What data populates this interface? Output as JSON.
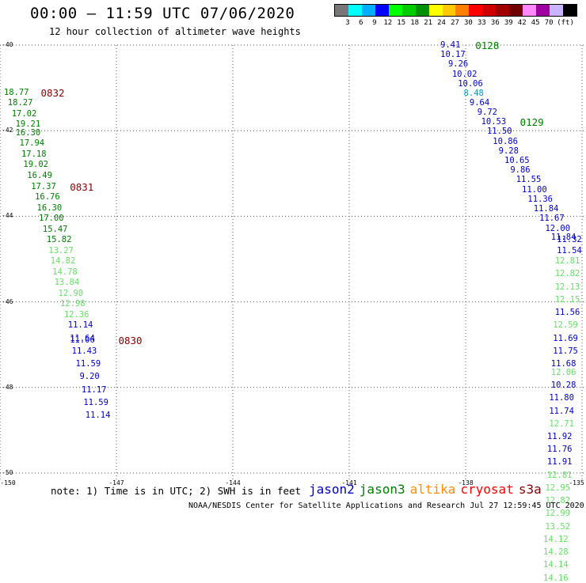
{
  "header": {
    "title": "00:00 – 11:59 UTC 07/06/2020",
    "subtitle": "12 hour collection of altimeter wave heights"
  },
  "legend": {
    "colors": [
      "#777777",
      "#00ffff",
      "#00b0ff",
      "#0000ff",
      "#00ff00",
      "#00cc00",
      "#009000",
      "#ffff00",
      "#ffc800",
      "#ff8000",
      "#ff0000",
      "#d00000",
      "#a00000",
      "#700000",
      "#ff88ff",
      "#a000a0",
      "#c8b4ff",
      "#000000"
    ],
    "ticks": [
      "3",
      "6",
      "9",
      "12",
      "15",
      "18",
      "21",
      "24",
      "27",
      "30",
      "33",
      "36",
      "39",
      "42",
      "45",
      "70",
      "(ft)"
    ]
  },
  "axes": {
    "lat_labels": [
      "-40",
      "-42",
      "-44",
      "-46",
      "-48",
      "-50"
    ],
    "lon_labels": [
      "-150",
      "-147",
      "-144",
      "-141",
      "-138",
      "-135"
    ]
  },
  "satellite_colors": {
    "jason2": "#0000cc",
    "jason3": "#008000",
    "altika": "#ff8c00",
    "cryosat": "#ff0000",
    "s3a": "#8b0000",
    "orbit": "#8b0000"
  },
  "tracks": [
    {
      "name": "track-831-832",
      "points": [
        {
          "lat": -41.1,
          "lon": -149.9,
          "v": "18.77",
          "c": "jason3"
        },
        {
          "lat": -41.35,
          "lon": -149.8,
          "v": "18.27",
          "c": "jason3"
        },
        {
          "lat": -41.6,
          "lon": -149.7,
          "v": "17.02",
          "c": "jason3"
        },
        {
          "lat": -41.85,
          "lon": -149.6,
          "v": "19.21",
          "c": "jason3"
        },
        {
          "lat": -42.05,
          "lon": -149.6,
          "v": "16.30",
          "c": "jason3"
        },
        {
          "lat": -42.3,
          "lon": -149.5,
          "v": "17.94",
          "c": "jason3"
        },
        {
          "lat": -42.55,
          "lon": -149.45,
          "v": "17.18",
          "c": "jason3"
        },
        {
          "lat": -42.8,
          "lon": -149.4,
          "v": "19.02",
          "c": "jason3"
        },
        {
          "lat": -43.05,
          "lon": -149.3,
          "v": "16.49",
          "c": "jason3"
        },
        {
          "lat": -43.3,
          "lon": -149.2,
          "v": "17.37",
          "c": "jason3"
        },
        {
          "lat": -43.55,
          "lon": -149.1,
          "v": "16.76",
          "c": "jason3"
        },
        {
          "lat": -43.8,
          "lon": -149.05,
          "v": "16.30",
          "c": "jason3"
        },
        {
          "lat": -44.05,
          "lon": -149.0,
          "v": "17.00",
          "c": "jason3"
        },
        {
          "lat": -44.3,
          "lon": -148.9,
          "v": "15.47",
          "c": "jason3"
        },
        {
          "lat": -44.55,
          "lon": -148.8,
          "v": "15.82",
          "c": "jason3"
        },
        {
          "lat": -44.8,
          "lon": -148.75,
          "v": "13.27",
          "c": "jason3_light"
        },
        {
          "lat": -45.05,
          "lon": -148.7,
          "v": "14.82",
          "c": "jason3_light"
        },
        {
          "lat": -45.3,
          "lon": -148.65,
          "v": "14.78",
          "c": "jason3_light"
        },
        {
          "lat": -45.55,
          "lon": -148.6,
          "v": "13.84",
          "c": "jason3_light"
        },
        {
          "lat": -45.8,
          "lon": -148.5,
          "v": "12.90",
          "c": "jason3_light"
        },
        {
          "lat": -46.05,
          "lon": -148.45,
          "v": "12.98",
          "c": "jason3_light"
        },
        {
          "lat": -46.3,
          "lon": -148.35,
          "v": "12.36",
          "c": "jason3_light"
        },
        {
          "lat": -46.55,
          "lon": -148.25,
          "v": "11.14",
          "c": "jason2"
        },
        {
          "lat": -46.85,
          "lon": -148.2,
          "v": "11.64",
          "c": "jason2"
        },
        {
          "lat": -46.9,
          "lon": -148.2,
          "v": "11.06",
          "c": "jason2"
        },
        {
          "lat": -47.15,
          "lon": -148.15,
          "v": "11.43",
          "c": "jason2"
        },
        {
          "lat": -47.45,
          "lon": -148.05,
          "v": "11.59",
          "c": "jason2"
        },
        {
          "lat": -47.75,
          "lon": -147.95,
          "v": "9.20",
          "c": "jason2"
        },
        {
          "lat": -48.05,
          "lon": -147.9,
          "v": "11.17",
          "c": "jason2"
        },
        {
          "lat": -48.35,
          "lon": -147.85,
          "v": "11.59",
          "c": "jason2"
        },
        {
          "lat": -48.65,
          "lon": -147.8,
          "v": "11.14",
          "c": "jason2"
        }
      ]
    },
    {
      "name": "track-128-129",
      "points": [
        {
          "lat": -40.0,
          "lon": -138.65,
          "v": "9.41",
          "c": "jason2"
        },
        {
          "lat": -40.22,
          "lon": -138.65,
          "v": "10.17",
          "c": "jason2"
        },
        {
          "lat": -40.45,
          "lon": -138.45,
          "v": "9.26",
          "c": "jason2"
        },
        {
          "lat": -40.68,
          "lon": -138.35,
          "v": "10.02",
          "c": "jason2"
        },
        {
          "lat": -40.9,
          "lon": -138.2,
          "v": "10.06",
          "c": "jason2"
        },
        {
          "lat": -41.12,
          "lon": -138.05,
          "v": "8.48",
          "c": "teal"
        },
        {
          "lat": -41.35,
          "lon": -137.9,
          "v": "9.64",
          "c": "jason2"
        },
        {
          "lat": -41.57,
          "lon": -137.7,
          "v": "9.72",
          "c": "jason2"
        },
        {
          "lat": -41.8,
          "lon": -137.6,
          "v": "10.53",
          "c": "jason2"
        },
        {
          "lat": -42.02,
          "lon": -137.45,
          "v": "11.50",
          "c": "jason2"
        },
        {
          "lat": -42.25,
          "lon": -137.3,
          "v": "10.86",
          "c": "jason2"
        },
        {
          "lat": -42.48,
          "lon": -137.15,
          "v": "9.28",
          "c": "jason2"
        },
        {
          "lat": -42.7,
          "lon": -137.0,
          "v": "10.65",
          "c": "jason2"
        },
        {
          "lat": -42.92,
          "lon": -136.85,
          "v": "9.86",
          "c": "jason2"
        },
        {
          "lat": -43.15,
          "lon": -136.7,
          "v": "11.55",
          "c": "jason2"
        },
        {
          "lat": -43.38,
          "lon": -136.55,
          "v": "11.00",
          "c": "jason2"
        },
        {
          "lat": -43.6,
          "lon": -136.4,
          "v": "11.36",
          "c": "jason2"
        },
        {
          "lat": -43.83,
          "lon": -136.25,
          "v": "11.84",
          "c": "jason2"
        },
        {
          "lat": -44.05,
          "lon": -136.1,
          "v": "11.67",
          "c": "jason2"
        },
        {
          "lat": -44.28,
          "lon": -135.95,
          "v": "12.00",
          "c": "jason2"
        },
        {
          "lat": -44.5,
          "lon": -135.8,
          "v": "11.84",
          "c": "jason2"
        }
      ]
    },
    {
      "name": "track-east-column",
      "points": [
        {
          "lat": -44.55,
          "lon": -135.65,
          "v": "11.32",
          "c": "jason2"
        },
        {
          "lat": -44.8,
          "lon": -135.65,
          "v": "11.54",
          "c": "jason2"
        },
        {
          "lat": -45.05,
          "lon": -135.7,
          "v": "12.81",
          "c": "jason3_light"
        },
        {
          "lat": -45.35,
          "lon": -135.7,
          "v": "12.82",
          "c": "jason3_light"
        },
        {
          "lat": -45.65,
          "lon": -135.7,
          "v": "12.13",
          "c": "jason3_light"
        },
        {
          "lat": -45.95,
          "lon": -135.7,
          "v": "12.15",
          "c": "jason3_light"
        },
        {
          "lat": -46.25,
          "lon": -135.7,
          "v": "11.56",
          "c": "jason2"
        },
        {
          "lat": -46.55,
          "lon": -135.75,
          "v": "12.59",
          "c": "jason3_light"
        },
        {
          "lat": -46.85,
          "lon": -135.75,
          "v": "11.69",
          "c": "jason2"
        },
        {
          "lat": -47.15,
          "lon": -135.75,
          "v": "11.75",
          "c": "jason2"
        },
        {
          "lat": -47.45,
          "lon": -135.8,
          "v": "11.68",
          "c": "jason2"
        },
        {
          "lat": -47.65,
          "lon": -135.8,
          "v": "12.06",
          "c": "jason3_light"
        },
        {
          "lat": -47.95,
          "lon": -135.8,
          "v": "10.28",
          "c": "jason2"
        },
        {
          "lat": -48.25,
          "lon": -135.85,
          "v": "11.80",
          "c": "jason2"
        },
        {
          "lat": -48.55,
          "lon": -135.85,
          "v": "11.74",
          "c": "jason2"
        },
        {
          "lat": -48.85,
          "lon": -135.85,
          "v": "12.71",
          "c": "jason3_light"
        },
        {
          "lat": -49.15,
          "lon": -135.9,
          "v": "11.92",
          "c": "jason2"
        },
        {
          "lat": -49.45,
          "lon": -135.9,
          "v": "11.76",
          "c": "jason2"
        },
        {
          "lat": -49.75,
          "lon": -135.9,
          "v": "11.91",
          "c": "jason2"
        },
        {
          "lat": -50.05,
          "lon": -135.9,
          "v": "12.81",
          "c": "jason3_light"
        },
        {
          "lat": -50.35,
          "lon": -135.95,
          "v": "12.95",
          "c": "jason3_light"
        },
        {
          "lat": -50.65,
          "lon": -135.95,
          "v": "12.82",
          "c": "jason3_light"
        },
        {
          "lat": -50.95,
          "lon": -135.95,
          "v": "12.99",
          "c": "jason3_light"
        },
        {
          "lat": -51.25,
          "lon": -135.95,
          "v": "13.52",
          "c": "jason3_light"
        },
        {
          "lat": -51.55,
          "lon": -136.0,
          "v": "14.12",
          "c": "jason3_light"
        },
        {
          "lat": -51.85,
          "lon": -136.0,
          "v": "14.28",
          "c": "jason3_light"
        },
        {
          "lat": -52.15,
          "lon": -136.0,
          "v": "14.14",
          "c": "jason3_light"
        },
        {
          "lat": -52.45,
          "lon": -136.0,
          "v": "14.16",
          "c": "jason3_light"
        }
      ]
    }
  ],
  "orbit_labels": [
    {
      "text": "0832",
      "lat": -41.1,
      "lon": -148.95
    },
    {
      "text": "0831",
      "lat": -43.3,
      "lon": -148.2
    },
    {
      "text": "0830",
      "lat": -46.9,
      "lon": -146.95
    },
    {
      "text": "0128",
      "lat": -40.0,
      "lon": -137.75
    },
    {
      "text": "0129",
      "lat": -41.8,
      "lon": -136.6
    }
  ],
  "footer": {
    "note": "note: 1) Time is in UTC; 2) SWH is in feet",
    "satellites": [
      "jason2",
      "jason3",
      "altika",
      "cryosat",
      "s3a"
    ],
    "credit": "NOAA/NESDIS Center for Satellite Applications and Research   Jul 27 12:59:45 UTC 2020"
  }
}
